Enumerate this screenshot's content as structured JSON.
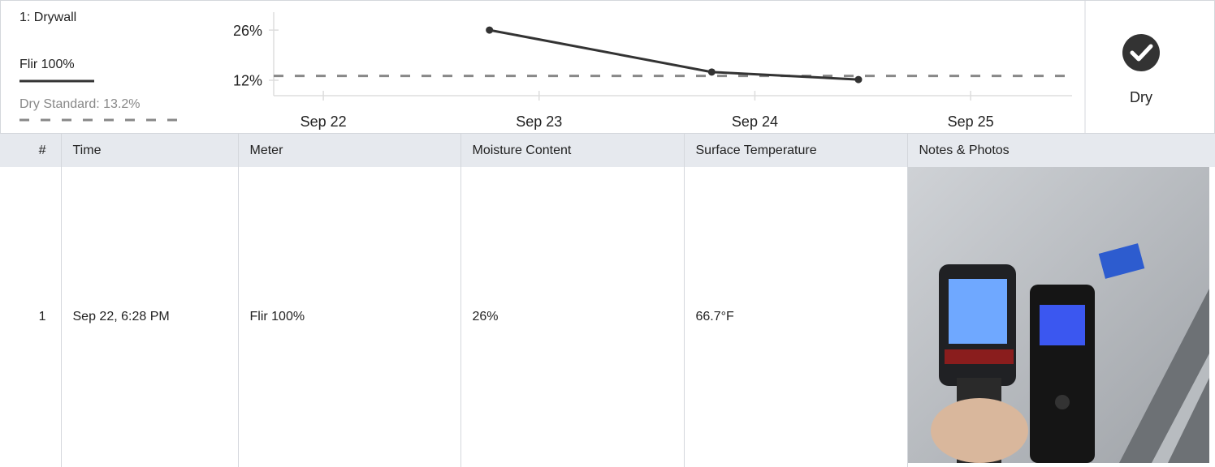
{
  "chart_data": {
    "type": "line",
    "title": "1: Drywall",
    "x": [
      22.77,
      23.8,
      24.48
    ],
    "series": [
      {
        "name": "Flir 100%",
        "color": "#333333",
        "values": [
          26,
          14.3,
          12.2
        ]
      }
    ],
    "reference_line": {
      "label": "Dry Standard: 13.2%",
      "value": 13.2,
      "color": "#888888"
    },
    "xlim": [
      21.77,
      25.47
    ],
    "xticks": [
      {
        "value": 22,
        "label": "Sep 22"
      },
      {
        "value": 23,
        "label": "Sep 23"
      },
      {
        "value": 24,
        "label": "Sep 24"
      },
      {
        "value": 25,
        "label": "Sep 25"
      }
    ],
    "ylim": [
      7.7,
      31
    ],
    "yticks": [
      {
        "value": 26,
        "label": "26%"
      },
      {
        "value": 12,
        "label": "12%"
      }
    ]
  },
  "status": "Dry",
  "table": {
    "headers": [
      "#",
      "Time",
      "Meter",
      "Moisture Content",
      "Surface Temperature",
      "Notes & Photos"
    ],
    "rows": [
      [
        "1",
        "Sep 22, 6:28 PM",
        "Flir 100%",
        "26%",
        "66.7°F"
      ]
    ]
  }
}
